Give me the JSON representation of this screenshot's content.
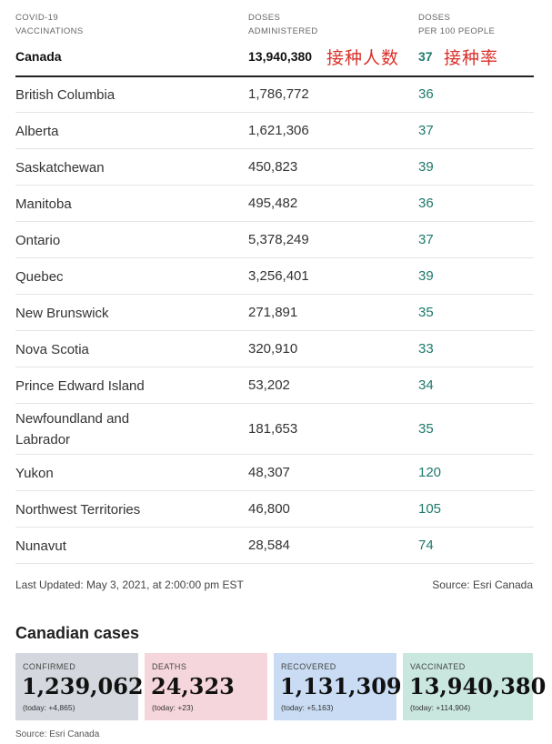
{
  "table": {
    "headers": {
      "col1": [
        "COVID-19",
        "VACCINATIONS"
      ],
      "col2": [
        "DOSES",
        "ADMINISTERED"
      ],
      "col3": [
        "DOSES",
        "PER 100 PEOPLE"
      ]
    },
    "canada": {
      "name": "Canada",
      "doses": "13,940,380",
      "rate": "37"
    },
    "annotations": {
      "doses_note": "接种人数",
      "rate_note": "接种率"
    },
    "rows": [
      {
        "name": "British Columbia",
        "doses": "1,786,772",
        "rate": "36"
      },
      {
        "name": "Alberta",
        "doses": "1,621,306",
        "rate": "37"
      },
      {
        "name": "Saskatchewan",
        "doses": "450,823",
        "rate": "39"
      },
      {
        "name": "Manitoba",
        "doses": "495,482",
        "rate": "36"
      },
      {
        "name": "Ontario",
        "doses": "5,378,249",
        "rate": "37"
      },
      {
        "name": "Quebec",
        "doses": "3,256,401",
        "rate": "39"
      },
      {
        "name": "New Brunswick",
        "doses": "271,891",
        "rate": "35"
      },
      {
        "name": "Nova Scotia",
        "doses": "320,910",
        "rate": "33"
      },
      {
        "name": "Prince Edward Island",
        "doses": "53,202",
        "rate": "34"
      },
      {
        "name": "Newfoundland and Labrador",
        "doses": "181,653",
        "rate": "35"
      },
      {
        "name": "Yukon",
        "doses": "48,307",
        "rate": "120"
      },
      {
        "name": "Northwest Territories",
        "doses": "46,800",
        "rate": "105"
      },
      {
        "name": "Nunavut",
        "doses": "28,584",
        "rate": "74"
      }
    ],
    "last_updated": "Last Updated: May 3, 2021, at 2:00:00 pm EST",
    "source": "Source: Esri Canada"
  },
  "cases": {
    "title": "Canadian cases",
    "cards": [
      {
        "label": "CONFIRMED",
        "value": "1,239,062",
        "today": "(today: +4,865)",
        "color": "#d4d8de"
      },
      {
        "label": "DEATHS",
        "value": "24,323",
        "today": "(today: +23)",
        "color": "#f6d6dd"
      },
      {
        "label": "RECOVERED",
        "value": "1,131,309",
        "today": "(today: +5,163)",
        "color": "#c9dcf3"
      },
      {
        "label": "VACCINATED",
        "value": "13,940,380",
        "today": "(today: +114,904)",
        "color": "#c9e7df"
      }
    ],
    "source": "Source: Esri Canada"
  },
  "colors": {
    "accent": "#1e7a6b",
    "annotation": "#d9302a"
  }
}
